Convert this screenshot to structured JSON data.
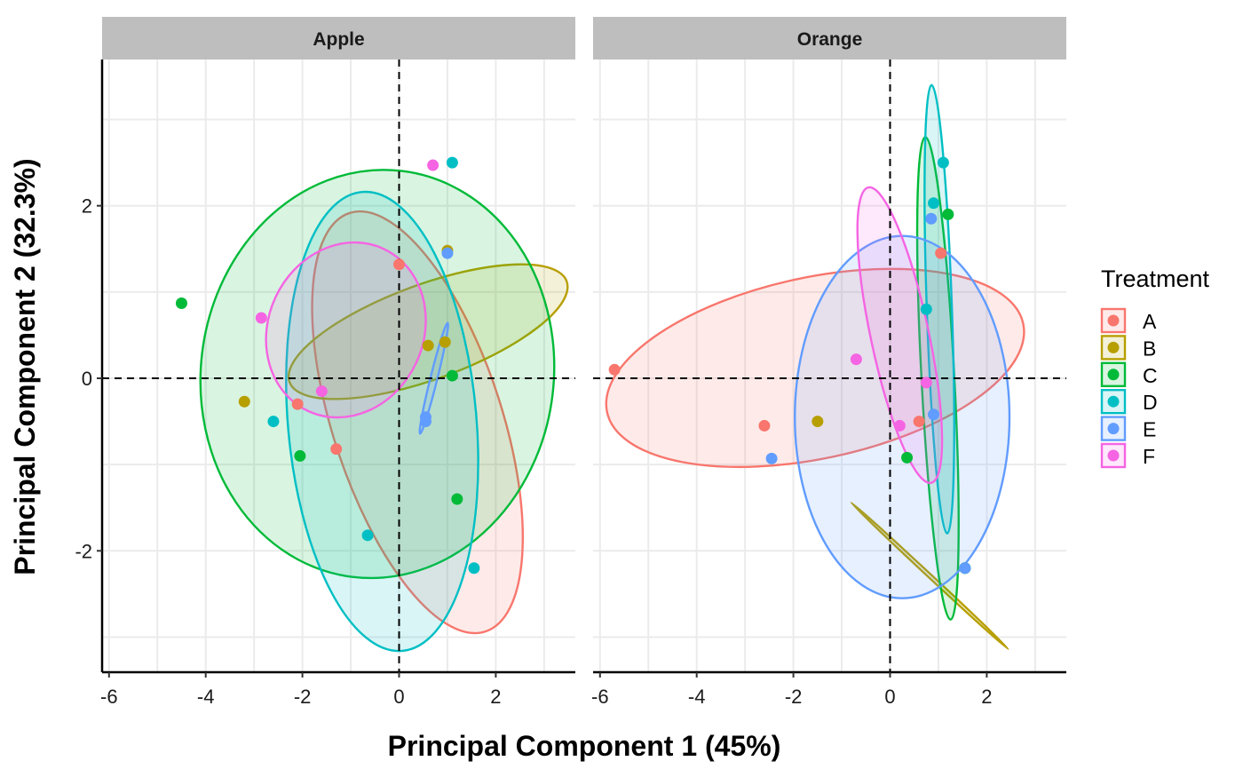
{
  "chart_data": {
    "type": "scatter",
    "xlabel": "Principal Component 1 (45%)",
    "ylabel": "Principal Component 2 (32.3%)",
    "xlim": [
      -6.2,
      3.6
    ],
    "ylim": [
      -3.4,
      3.7
    ],
    "x_ticks": [
      -6,
      -4,
      -2,
      0,
      2
    ],
    "y_ticks": [
      -2,
      0,
      2
    ],
    "reference_lines": {
      "x": 0,
      "y": 0,
      "style": "dashed"
    },
    "grid": true,
    "legend": {
      "title": "Treatment",
      "position": "right",
      "items": [
        "A",
        "B",
        "C",
        "D",
        "E",
        "F"
      ]
    },
    "colors": {
      "A": "#F8766D",
      "B": "#B79F00",
      "C": "#00BA38",
      "D": "#00BFC4",
      "E": "#619CFF",
      "F": "#F564E3"
    },
    "panels": [
      {
        "name": "Apple",
        "series": [
          {
            "name": "A",
            "points": [
              [
                0,
                1.32
              ],
              [
                -2.1,
                -0.3
              ],
              [
                -1.3,
                -0.82
              ]
            ],
            "ellipse": {
              "cx": 0.38,
              "cy": -0.51,
              "rx": 1.75,
              "ry": 2.55,
              "angle": 18
            }
          },
          {
            "name": "B",
            "points": [
              [
                -3.2,
                -0.27
              ],
              [
                0.6,
                0.38
              ],
              [
                0.95,
                0.42
              ],
              [
                1.0,
                1.48
              ]
            ],
            "ellipse": {
              "cx": 0.6,
              "cy": 0.54,
              "rx": 3.05,
              "ry": 0.55,
              "angle": 20
            }
          },
          {
            "name": "C",
            "points": [
              [
                -4.5,
                0.87
              ],
              [
                1.1,
                0.03
              ],
              [
                1.2,
                -1.4
              ],
              [
                -2.05,
                -0.9
              ]
            ],
            "ellipse": {
              "cx": -0.45,
              "cy": 0.05,
              "rx": 3.65,
              "ry": 2.37,
              "angle": -7
            }
          },
          {
            "name": "D",
            "points": [
              [
                1.1,
                2.5
              ],
              [
                -0.65,
                -1.82
              ],
              [
                1.55,
                -2.2
              ],
              [
                -2.6,
                -0.5
              ]
            ],
            "ellipse": {
              "cx": -0.35,
              "cy": -0.5,
              "rx": 1.95,
              "ry": 2.67,
              "angle": 5
            }
          },
          {
            "name": "E",
            "points": [
              [
                1.0,
                1.45
              ],
              [
                0.55,
                -0.45
              ],
              [
                0.55,
                -0.5
              ]
            ],
            "ellipse": {
              "cx": 0.72,
              "cy": 0.0,
              "rx": 1.18,
              "ry": 0.04,
              "angle": 76
            }
          },
          {
            "name": "F",
            "points": [
              [
                0.7,
                2.47
              ],
              [
                -2.85,
                0.7
              ],
              [
                -1.6,
                -0.15
              ]
            ],
            "ellipse": {
              "cx": -1.1,
              "cy": 0.56,
              "rx": 1.85,
              "ry": 0.9,
              "angle": 65
            }
          }
        ]
      },
      {
        "name": "Orange",
        "series": [
          {
            "name": "A",
            "points": [
              [
                -5.7,
                0.1
              ],
              [
                -2.6,
                -0.55
              ],
              [
                0.6,
                -0.5
              ],
              [
                1.05,
                1.45
              ]
            ],
            "ellipse": {
              "cx": -1.55,
              "cy": 0.12,
              "rx": 4.4,
              "ry": 1.05,
              "angle": 12
            }
          },
          {
            "name": "B",
            "points": [
              [
                -1.5,
                -0.5
              ],
              [
                1.55,
                -2.2
              ]
            ],
            "ellipse": {
              "cx": 0.82,
              "cy": -2.29,
              "rx": 2.22,
              "ry": 0.02,
              "angle": -43
            }
          },
          {
            "name": "C",
            "points": [
              [
                1.2,
                1.9
              ],
              [
                0.35,
                -0.92
              ],
              [
                1.55,
                -2.2
              ]
            ],
            "ellipse": {
              "cx": 0.99,
              "cy": 0.0,
              "rx": 0.34,
              "ry": 2.8,
              "angle": 3
            }
          },
          {
            "name": "D",
            "points": [
              [
                1.1,
                2.5
              ],
              [
                0.9,
                2.03
              ],
              [
                0.75,
                0.8
              ],
              [
                1.55,
                -2.2
              ]
            ],
            "ellipse": {
              "cx": 1.02,
              "cy": 0.8,
              "rx": 0.26,
              "ry": 2.6,
              "angle": 2
            }
          },
          {
            "name": "E",
            "points": [
              [
                0.85,
                1.85
              ],
              [
                0.9,
                -0.42
              ],
              [
                -2.45,
                -0.93
              ],
              [
                1.55,
                -2.2
              ]
            ],
            "ellipse": {
              "cx": 0.25,
              "cy": -0.45,
              "rx": 2.22,
              "ry": 2.1,
              "angle": 0
            }
          },
          {
            "name": "F",
            "points": [
              [
                -0.7,
                0.22
              ],
              [
                0.2,
                -0.55
              ],
              [
                0.75,
                -0.05
              ]
            ],
            "ellipse": {
              "cx": 0.2,
              "cy": 0.5,
              "rx": 0.6,
              "ry": 1.75,
              "angle": 12
            }
          }
        ]
      }
    ]
  }
}
